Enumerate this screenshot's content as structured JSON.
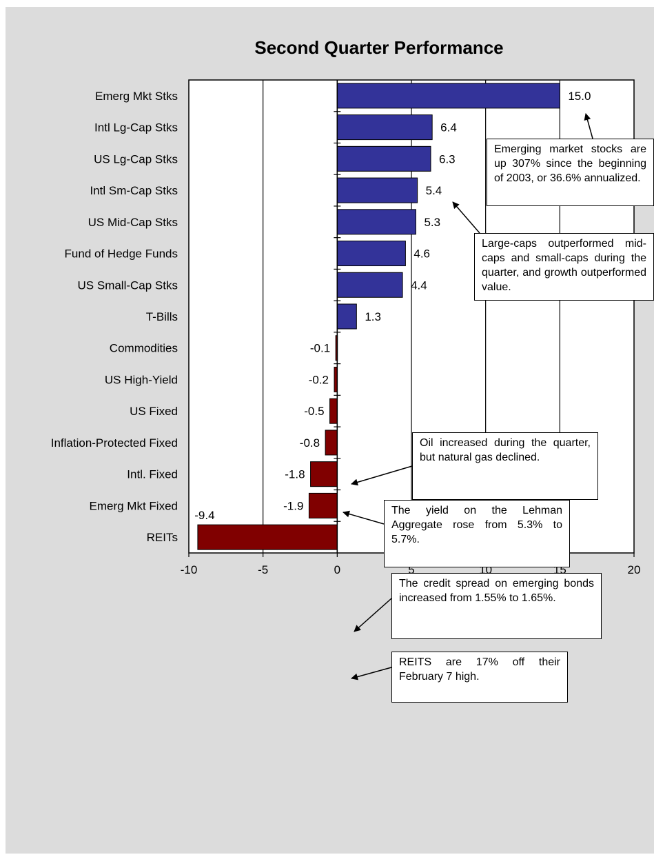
{
  "colors": {
    "positive_bar": "#333399",
    "negative_bar": "#800000",
    "background": "#dcdcdc",
    "plot_area": "#ffffff"
  },
  "chart_data": {
    "type": "bar",
    "orientation": "horizontal",
    "title": "Second Quarter Performance",
    "xlabel": "(%)",
    "ylabel": "",
    "xlim": [
      -10,
      20
    ],
    "xticks": [
      -10,
      -5,
      0,
      5,
      10,
      15,
      20
    ],
    "grid": "vertical",
    "categories": [
      "Emerg Mkt Stks",
      "Intl Lg-Cap Stks",
      "US Lg-Cap Stks",
      "Intl Sm-Cap Stks",
      "US Mid-Cap Stks",
      "Fund of Hedge Funds",
      "US Small-Cap Stks",
      "T-Bills",
      "Commodities",
      "US High-Yield",
      "US Fixed",
      "Inflation-Protected Fixed",
      "Intl. Fixed",
      "Emerg Mkt Fixed",
      "REITs"
    ],
    "values": [
      15.0,
      6.4,
      6.3,
      5.4,
      5.3,
      4.6,
      4.4,
      1.3,
      -0.1,
      -0.2,
      -0.5,
      -0.8,
      -1.8,
      -1.9,
      -9.4
    ],
    "value_labels": [
      "15.0",
      "6.4",
      "6.3",
      "5.4",
      "5.3",
      "4.6",
      "4.4",
      "1.3",
      "-0.1",
      "-0.2",
      "-0.5",
      "-0.8",
      "-1.8",
      "-1.9",
      "-9.4"
    ]
  },
  "annotations": [
    {
      "id": "emerging",
      "text": "Emerging market stocks are up 307% since the beginning of 2003, or 36.6% annualized."
    },
    {
      "id": "largecaps",
      "text": "Large-caps outperformed mid-caps and small-caps during the quarter, and growth outperformed value."
    },
    {
      "id": "oil",
      "text": "Oil increased during the quarter, but natural gas declined."
    },
    {
      "id": "lehman",
      "text": "The yield on the Lehman Aggregate rose from 5.3% to 5.7%."
    },
    {
      "id": "credit",
      "text": "The credit spread on emerging bonds increased from 1.55% to 1.65%."
    },
    {
      "id": "reits",
      "text": "REITS are 17% off their February 7 high."
    }
  ]
}
